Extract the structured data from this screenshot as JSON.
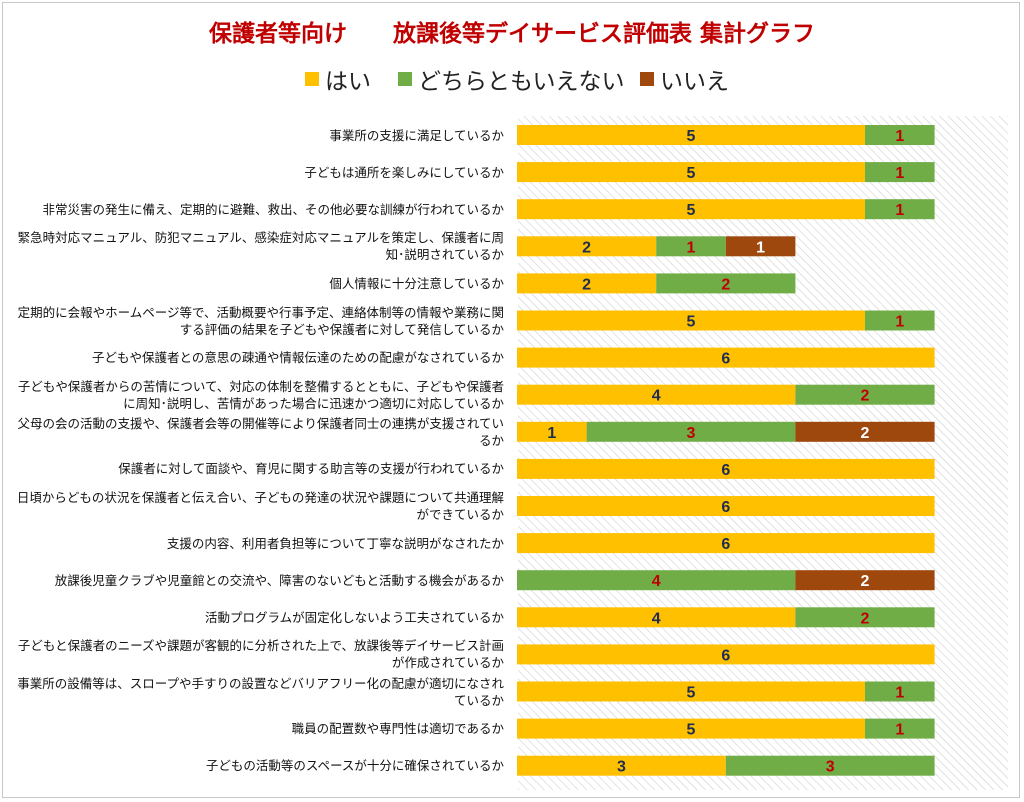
{
  "chart_data": {
    "type": "bar",
    "orientation": "horizontal",
    "stacked": true,
    "title": "保護者等向け　　放課後等デイサービス評価表 集計グラフ",
    "legend_position": "top",
    "series": [
      {
        "name": "はい",
        "color": "#ffc000",
        "label_color": "#1f2d50",
        "values": [
          5,
          5,
          5,
          2,
          2,
          5,
          6,
          4,
          1,
          6,
          6,
          6,
          0,
          4,
          6,
          5,
          5,
          3
        ]
      },
      {
        "name": "どちらともいえない",
        "color": "#70ad47",
        "label_color": "#c00000",
        "values": [
          1,
          1,
          1,
          1,
          2,
          1,
          0,
          2,
          3,
          0,
          0,
          0,
          4,
          2,
          0,
          1,
          1,
          3
        ]
      },
      {
        "name": "いいえ",
        "color": "#9e480e",
        "label_color": "#ffffff",
        "values": [
          0,
          0,
          0,
          1,
          0,
          0,
          0,
          0,
          2,
          0,
          0,
          0,
          2,
          0,
          0,
          0,
          0,
          0
        ]
      }
    ],
    "categories": [
      "事業所の支援に満足しているか",
      "子どもは通所を楽しみにしているか",
      "非常災害の発生に備え、定期的に避難、救出、その他必要な訓練が行われているか",
      "緊急時対応マニュアル、防犯マニュアル、感染症対応マニュアルを策定し、保護者に周知･説明されているか",
      "個人情報に十分注意しているか",
      "定期的に会報やホームページ等で、活動概要や行事予定、連絡体制等の情報や業務に関する評価の結果を子どもや保護者に対して発信しているか",
      "子どもや保護者との意思の疎通や情報伝達のための配慮がなされているか",
      "子どもや保護者からの苦情について、対応の体制を整備するとともに、子どもや保護者に周知･説明し、苦情があった場合に迅速かつ適切に対応しているか",
      "父母の会の活動の支援や、保護者会等の開催等により保護者同士の連携が支援されているか",
      "保護者に対して面談や、育児に関する助言等の支援が行われているか",
      "日頃からどもの状況を保護者と伝え合い、子どもの発達の状況や課題について共通理解ができているか",
      "支援の内容、利用者負担等について丁寧な説明がなされたか",
      "放課後児童クラブや児童館との交流や、障害のないどもと活動する機会があるか",
      "活動プログラムが固定化しないよう工夫されているか",
      "子どもと保護者のニーズや課題が客観的に分析された上で、放課後等デイサービス計画が作成されているか",
      "事業所の設備等は、スロープや手すりの設置などバリアフリー化の配慮が適切になされているか",
      "職員の配置数や専門性は適切であるか",
      "子どもの活動等のスペースが十分に確保されているか"
    ],
    "xlim": [
      0,
      6
    ],
    "grid": false
  }
}
